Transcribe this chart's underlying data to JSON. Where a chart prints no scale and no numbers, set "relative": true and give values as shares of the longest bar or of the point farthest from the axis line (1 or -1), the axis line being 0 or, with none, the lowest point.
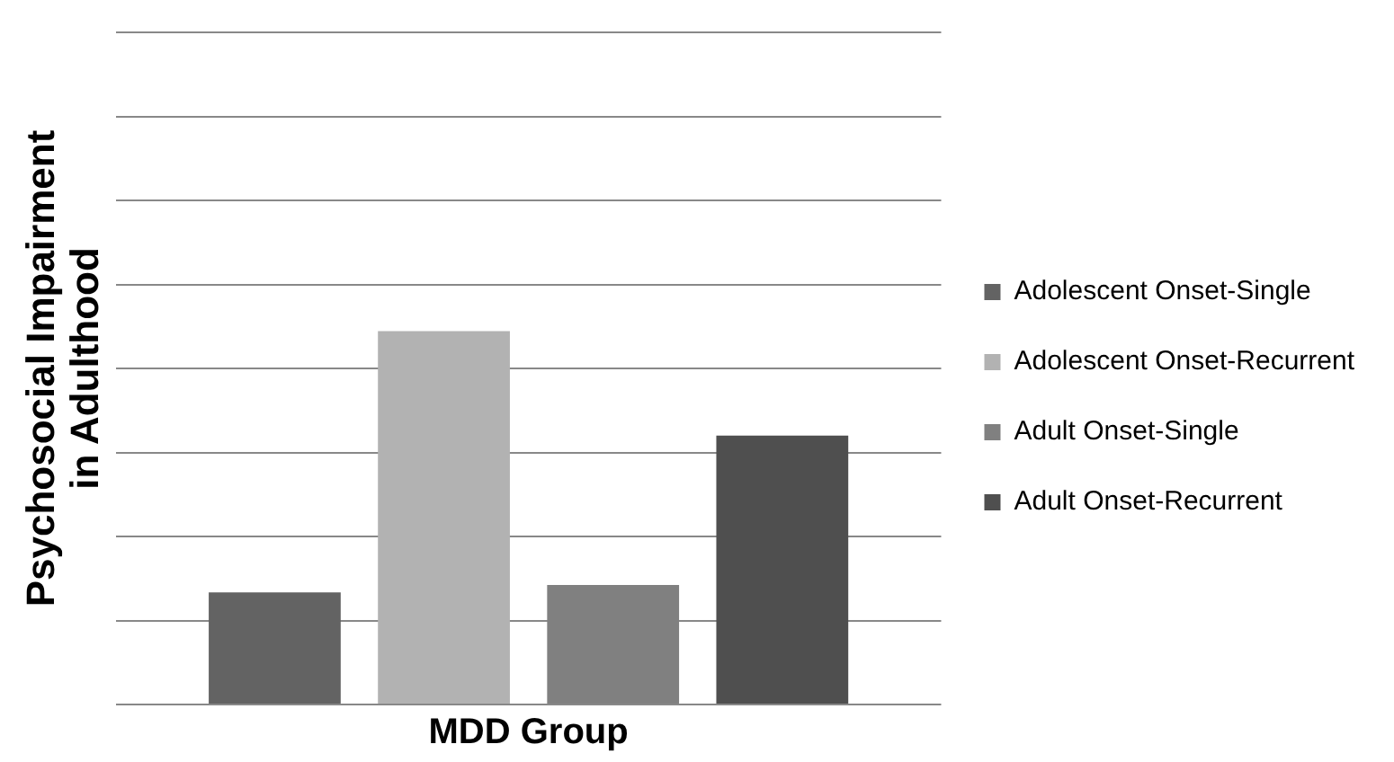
{
  "chart_data": {
    "type": "bar",
    "relative": true,
    "xlabel": "MDD Group",
    "ylabel": "Psychosocial Impairment\nin Adulthood",
    "categories": [
      null
    ],
    "grid": "y",
    "legend": "right",
    "series": [
      {
        "name": "Adolescent Onset-Single",
        "color": "#636363",
        "values": [
          0.3
        ]
      },
      {
        "name": "Adolescent Onset-Recurrent",
        "color": "#b2b2b2",
        "values": [
          1
        ]
      },
      {
        "name": "Adult Onset-Single",
        "color": "#808080",
        "values": [
          0.32
        ]
      },
      {
        "name": "Adult Onset-Recurrent",
        "color": "#4f4f4f",
        "values": [
          0.72
        ]
      }
    ]
  }
}
